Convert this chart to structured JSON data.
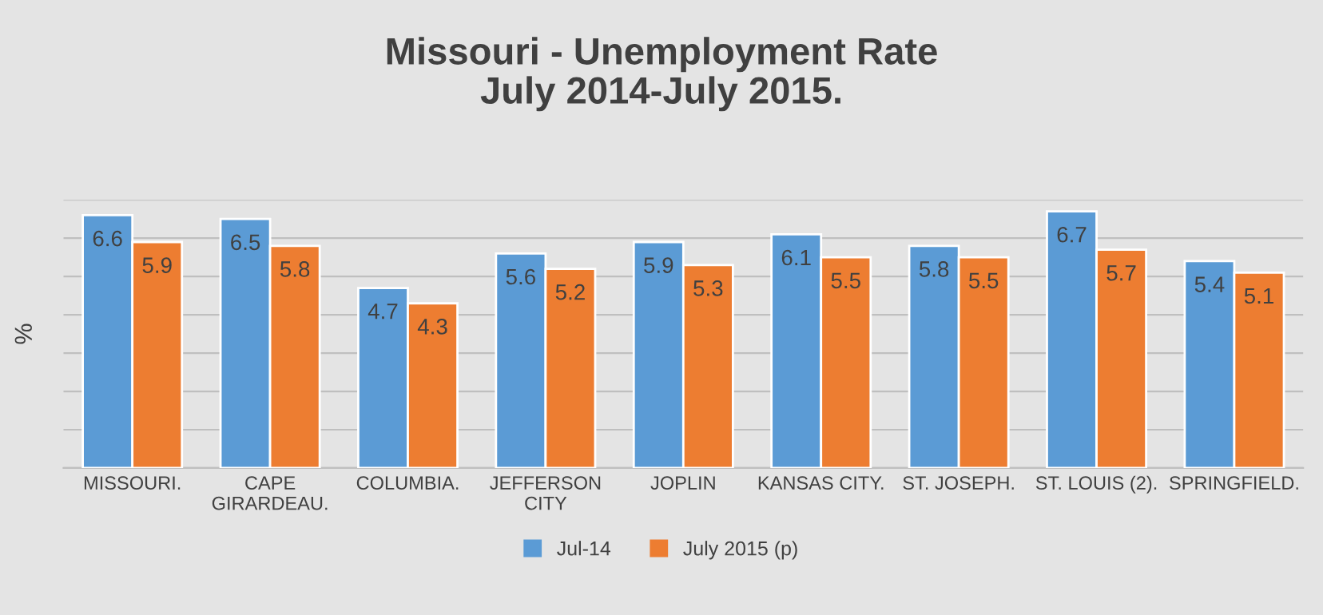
{
  "chart_data": {
    "type": "bar",
    "title": "Missouri - Unemployment Rate\nJuly 2014-July 2015.",
    "ylabel": "%",
    "categories": [
      "MISSOURI.",
      "CAPE\nGIRARDEAU.",
      "COLUMBIA.",
      "JEFFERSON\nCITY",
      "JOPLIN",
      "KANSAS CITY.",
      "ST. JOSEPH.",
      "ST. LOUIS (2).",
      "SPRINGFIELD."
    ],
    "series": [
      {
        "name": "Jul-14",
        "color": "#5b9bd5",
        "values": [
          6.6,
          6.5,
          4.7,
          5.6,
          5.9,
          6.1,
          5.8,
          6.7,
          5.4
        ]
      },
      {
        "name": "July 2015 (p)",
        "color": "#ed7d31",
        "values": [
          5.9,
          5.8,
          4.3,
          5.2,
          5.3,
          5.5,
          5.5,
          5.7,
          5.1
        ]
      }
    ],
    "ylim": [
      0,
      7
    ],
    "yticks": [
      {
        "value": 0,
        "label": null
      },
      {
        "value": 1,
        "label": null
      },
      {
        "value": 2,
        "label": null
      },
      {
        "value": 3,
        "label": null
      },
      {
        "value": 4,
        "label": null
      },
      {
        "value": 5,
        "label": null
      },
      {
        "value": 6,
        "label": null
      },
      {
        "value": 7,
        "label": null
      }
    ],
    "tick_labels": "x",
    "grid": "y",
    "legend": "bottom",
    "data_labels": true
  }
}
